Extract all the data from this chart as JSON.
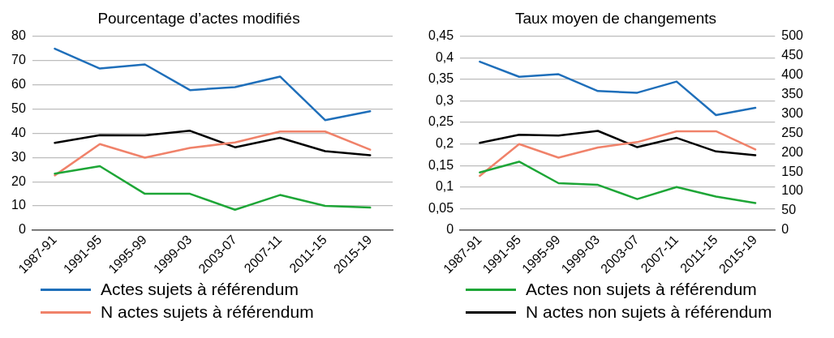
{
  "chart_data": [
    {
      "type": "line",
      "title": "Pourcentage d’actes modifiés",
      "categories": [
        "1987-91",
        "1991-95",
        "1995-99",
        "1999-03",
        "2003-07",
        "2007-11",
        "2011-15",
        "2015-19"
      ],
      "series": [
        {
          "name": "Actes sujets à référendum",
          "color": "#1f6fba",
          "values": [
            74.9,
            66.7,
            68.4,
            57.8,
            59.0,
            63.4,
            45.4,
            49.1
          ]
        },
        {
          "name": "Actes non sujets à référendum",
          "color": "#1ea637",
          "values": [
            23.3,
            26.4,
            15.0,
            15.0,
            8.4,
            14.5,
            10.0,
            9.3
          ]
        },
        {
          "name": "N actes sujets à référendum",
          "color": "#f0826a",
          "values": [
            22.6,
            35.5,
            29.9,
            33.9,
            36.2,
            40.7,
            40.7,
            33.2
          ]
        },
        {
          "name": "N actes non sujets à référendum",
          "color": "#000000",
          "values": [
            36.0,
            39.2,
            39.1,
            41.0,
            34.2,
            38.1,
            32.6,
            30.9
          ]
        }
      ],
      "ylim": [
        0,
        80
      ],
      "yticks": [
        0,
        10,
        20,
        30,
        40,
        50,
        60,
        70,
        80
      ],
      "grid": "y",
      "legend": "bottom",
      "marker": "none"
    },
    {
      "type": "line",
      "title": "Taux moyen de changements",
      "categories": [
        "1987-91",
        "1991-95",
        "1995-99",
        "1999-03",
        "2003-07",
        "2007-11",
        "2011-15",
        "2015-19"
      ],
      "series": [
        {
          "color": "#1f6fba",
          "values": [
            0.391,
            0.356,
            0.362,
            0.323,
            0.319,
            0.345,
            0.267,
            0.284
          ]
        },
        {
          "color": "#1ea637",
          "values": [
            0.134,
            0.159,
            0.109,
            0.105,
            0.072,
            0.1,
            0.078,
            0.063
          ]
        },
        {
          "color": "#f0826a",
          "axis": "y2",
          "values": [
            140,
            222,
            187,
            213,
            227,
            255,
            255,
            208
          ]
        },
        {
          "color": "#000000",
          "axis": "y2",
          "values": [
            225,
            246,
            244,
            256,
            214,
            238,
            203,
            193
          ]
        }
      ],
      "ylim": [
        0,
        0.45
      ],
      "yticks": [
        0,
        {
          "value": 0.05,
          "label": "0,05"
        },
        {
          "value": 0.1,
          "label": "0,1"
        },
        {
          "value": 0.15,
          "label": "0,15"
        },
        {
          "value": 0.2,
          "label": "0,2"
        },
        {
          "value": 0.25,
          "label": "0,25"
        },
        {
          "value": 0.3,
          "label": "0,3"
        },
        {
          "value": 0.35,
          "label": "0,35"
        },
        {
          "value": 0.4,
          "label": "0,4"
        },
        {
          "value": 0.45,
          "label": "0,45"
        }
      ],
      "y2lim": [
        0,
        500
      ],
      "y2ticks": [
        0,
        50,
        100,
        150,
        200,
        250,
        300,
        350,
        400,
        450,
        500
      ],
      "grid": "y",
      "marker": "none"
    }
  ]
}
